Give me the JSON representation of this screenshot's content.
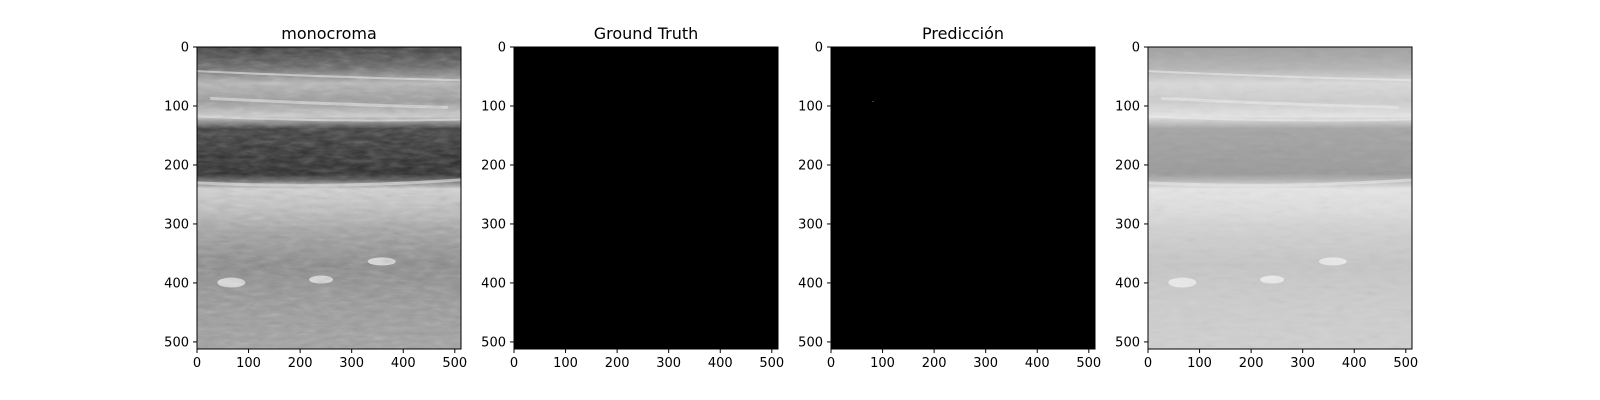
{
  "figure": {
    "panels": [
      {
        "title": "monocroma",
        "image": "ultrasound-monochrome",
        "x_ticks": [
          "0",
          "100",
          "200",
          "300",
          "400",
          "500"
        ],
        "y_ticks": [
          "0",
          "100",
          "200",
          "300",
          "400",
          "500"
        ]
      },
      {
        "title": "Ground Truth",
        "image": "mask-black",
        "x_ticks": [
          "0",
          "100",
          "200",
          "300",
          "400",
          "500"
        ],
        "y_ticks": [
          "0",
          "100",
          "200",
          "300",
          "400",
          "500"
        ]
      },
      {
        "title": "Predicción",
        "image": "mask-black",
        "x_ticks": [
          "0",
          "100",
          "200",
          "300",
          "400",
          "500"
        ],
        "y_ticks": [
          "0",
          "100",
          "200",
          "300",
          "400",
          "500"
        ]
      },
      {
        "title": "",
        "image": "ultrasound-overlay-light",
        "x_ticks": [
          "0",
          "100",
          "200",
          "300",
          "400",
          "500"
        ],
        "y_ticks": [
          "0",
          "100",
          "200",
          "300",
          "400",
          "500"
        ]
      }
    ],
    "colors": {
      "mask": "#000000",
      "frame": "#000000"
    }
  }
}
